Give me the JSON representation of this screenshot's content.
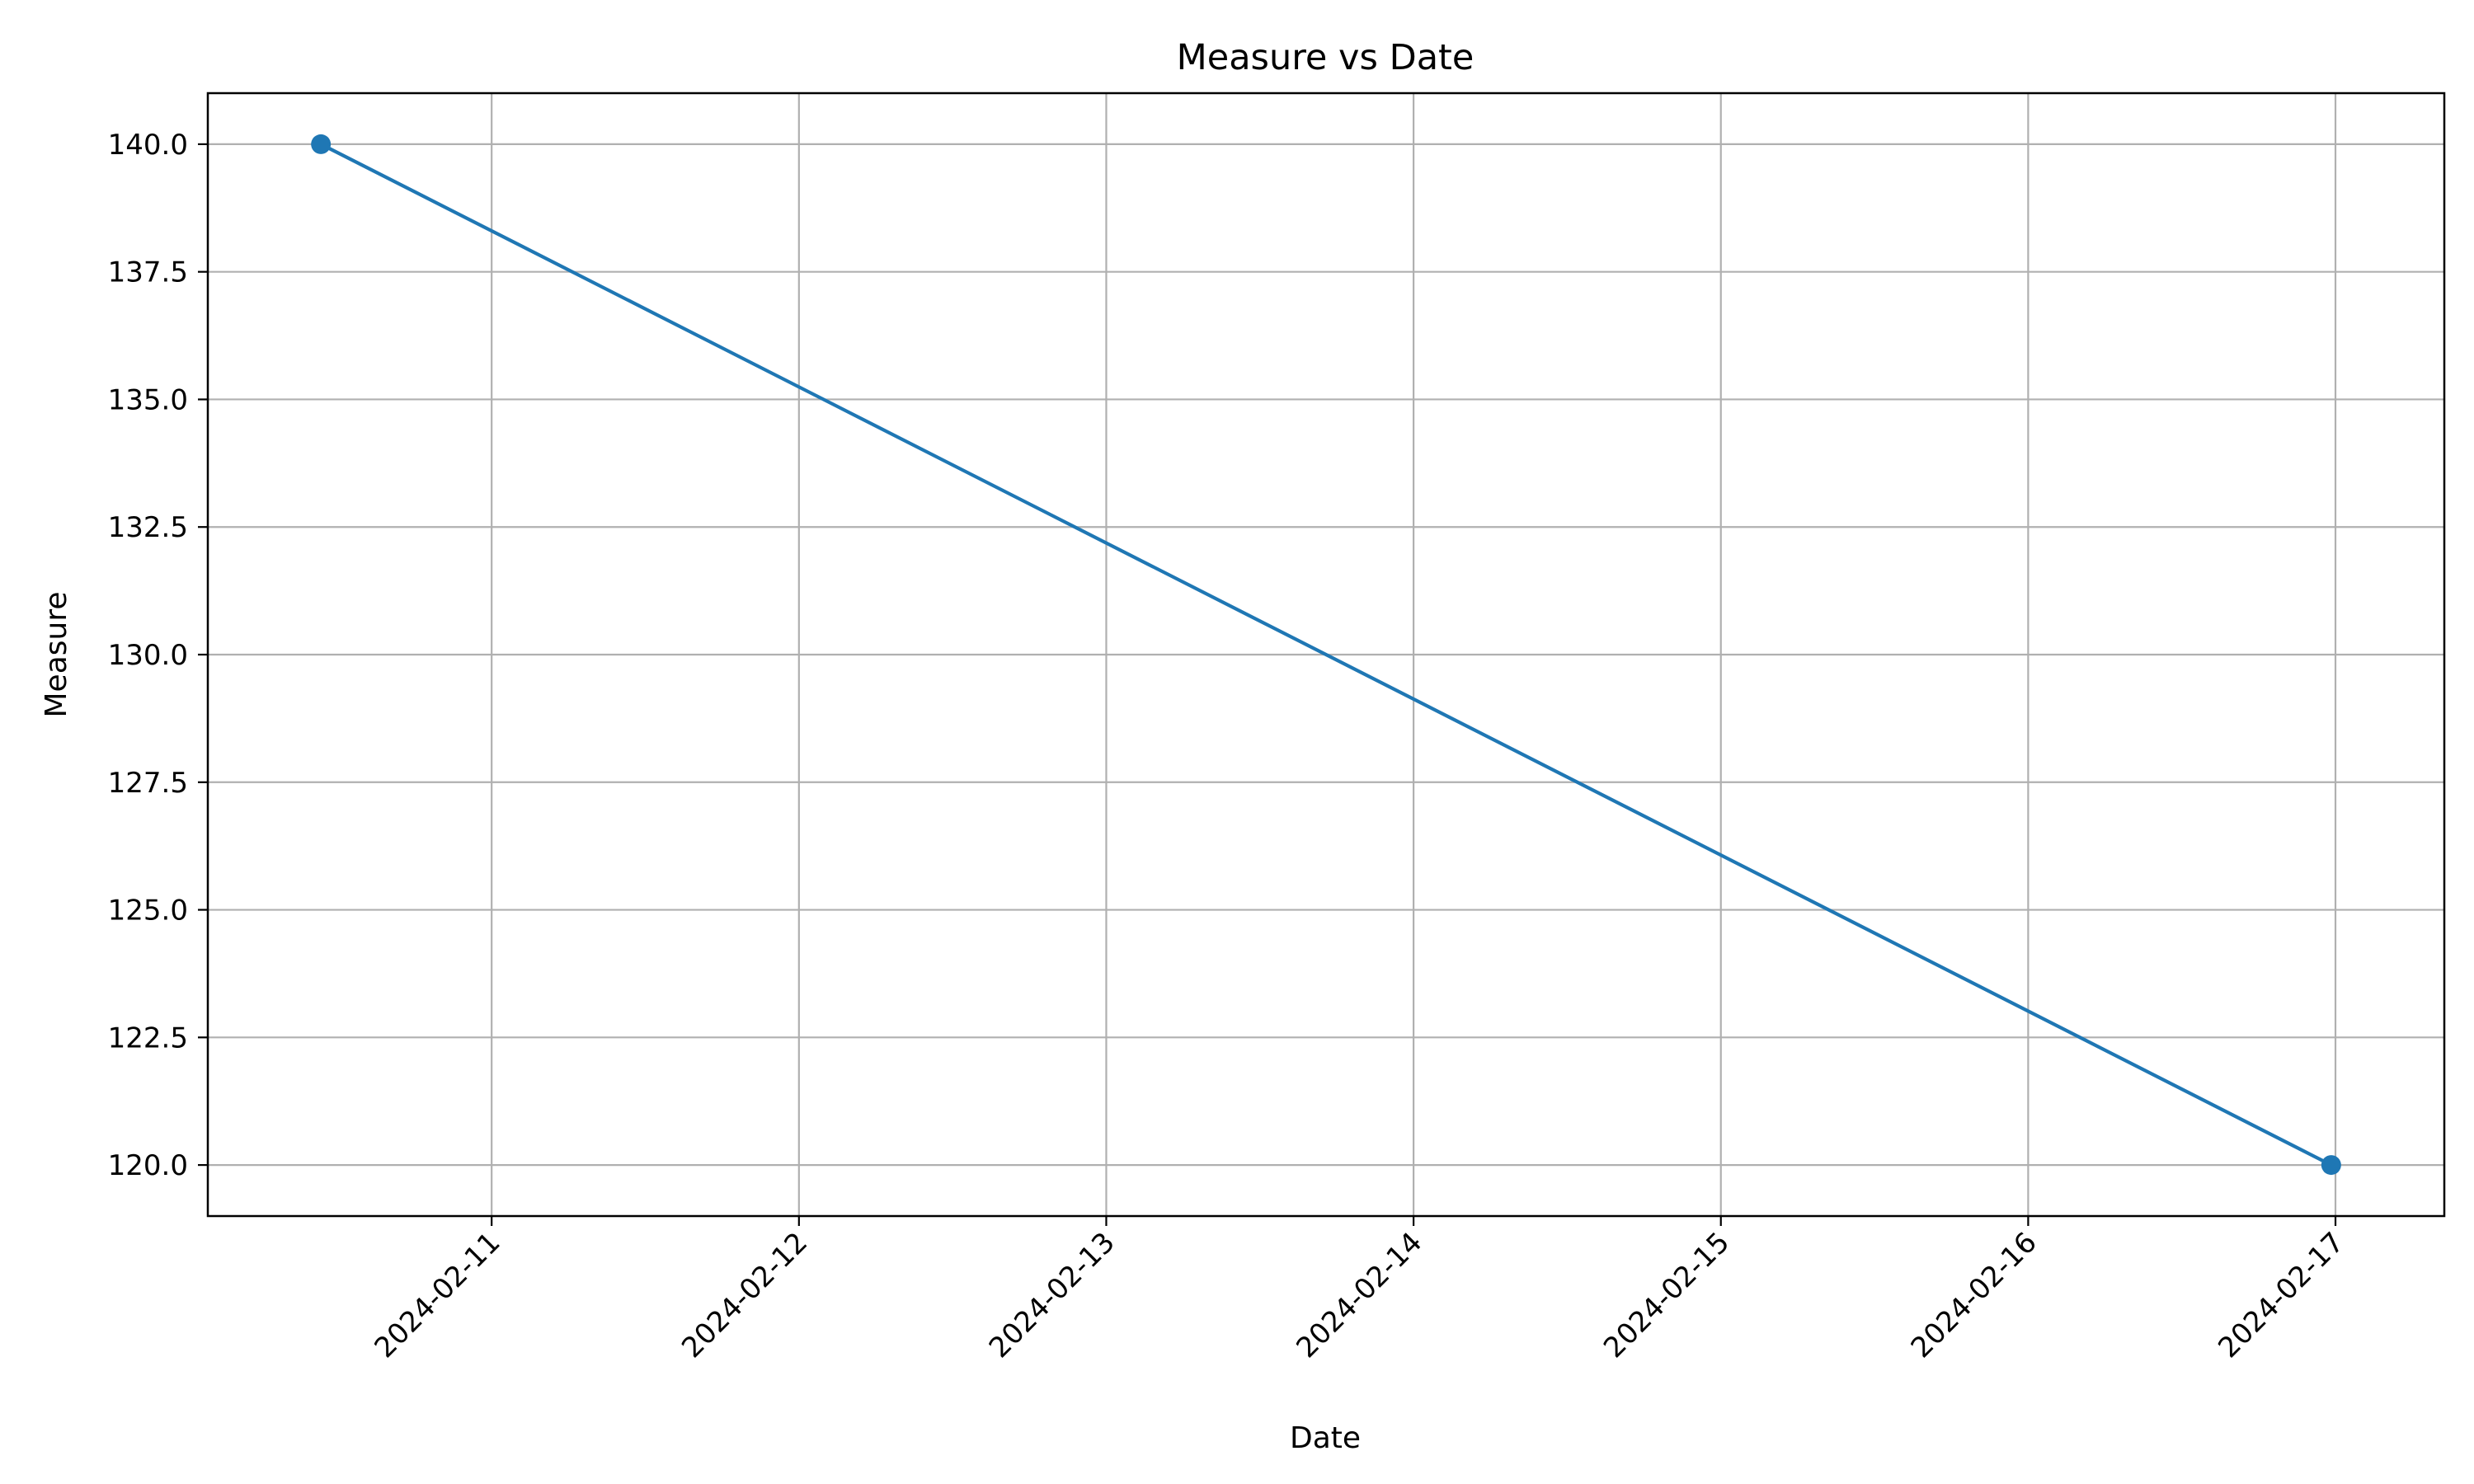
{
  "chart_data": {
    "type": "line",
    "title": "Measure vs Date",
    "xlabel": "Date",
    "ylabel": "Measure",
    "x": [
      "2024-02-10 10:40",
      "2024-02-16 23:40"
    ],
    "series": [
      {
        "values": [
          140.0,
          120.0
        ],
        "color": "#1f77b4",
        "marker": "circle"
      }
    ],
    "xticks": [
      "2024-02-11",
      "2024-02-12",
      "2024-02-13",
      "2024-02-14",
      "2024-02-15",
      "2024-02-16",
      "2024-02-17"
    ],
    "yticks": [
      "120.0",
      "122.5",
      "125.0",
      "127.5",
      "130.0",
      "132.5",
      "135.0",
      "137.5",
      "140.0"
    ],
    "xlim": [
      "2024-02-10 01:50",
      "2024-02-17 08:30"
    ],
    "ylim": [
      119.0,
      141.0
    ],
    "grid": true,
    "gridColor": "#b0b0b0"
  }
}
